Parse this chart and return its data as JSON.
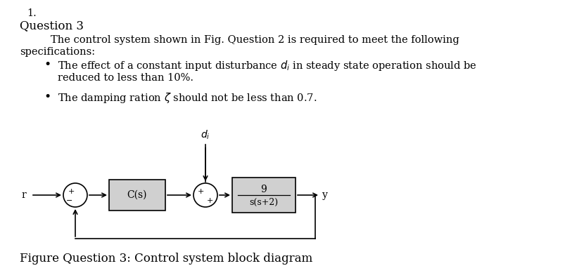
{
  "title_num": "1.",
  "question_label": "Question 3",
  "para_line1": "The control system shown in Fig. Question 2 is required to meet the following",
  "para_line2": "specifications:",
  "bullet1_line1": "The effect of a constant input disturbance $d_i$ in steady state operation should be",
  "bullet1_line2": "reduced to less than 10%.",
  "bullet2": "The damping ration $\\zeta$ should not be less than 0.7.",
  "figure_caption": "Figure Question 3: Control system block diagram",
  "bg_color": "#ffffff",
  "text_color": "#000000",
  "block_fill": "#d0d0d0",
  "block_edge": "#000000",
  "font_size_body": 10.5,
  "font_size_question": 12,
  "font_size_caption": 12,
  "font_size_diagram": 10,
  "font_size_diagram_small": 9
}
